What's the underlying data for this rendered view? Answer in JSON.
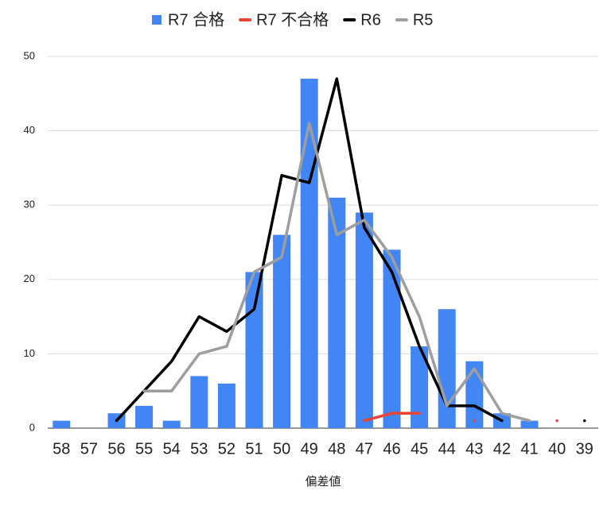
{
  "chart_data": {
    "type": "bar-line",
    "x_label": "偏差値",
    "categories": [
      "58",
      "57",
      "56",
      "55",
      "54",
      "53",
      "52",
      "51",
      "50",
      "49",
      "48",
      "47",
      "46",
      "45",
      "44",
      "43",
      "42",
      "41",
      "40",
      "39"
    ],
    "series": [
      {
        "name": "R7 合格",
        "type": "bar",
        "color": "#4285f4",
        "values": [
          1,
          null,
          2,
          3,
          1,
          7,
          6,
          21,
          26,
          47,
          31,
          29,
          24,
          11,
          16,
          9,
          2,
          1,
          null,
          null
        ]
      },
      {
        "name": "R7 不合格",
        "type": "line",
        "color": "#ea4335",
        "values": [
          null,
          null,
          null,
          null,
          null,
          null,
          null,
          null,
          null,
          null,
          null,
          1,
          2,
          2,
          null,
          1,
          null,
          null,
          1,
          null
        ]
      },
      {
        "name": "R6",
        "type": "line",
        "color": "#000000",
        "values": [
          null,
          null,
          1,
          5,
          9,
          15,
          13,
          16,
          34,
          33,
          47,
          27,
          21,
          11,
          3,
          3,
          1,
          null,
          null,
          1
        ]
      },
      {
        "name": "R5",
        "type": "line",
        "color": "#9e9e9e",
        "values": [
          null,
          null,
          null,
          5,
          5,
          10,
          11,
          21,
          23,
          41,
          26,
          28,
          23,
          15,
          3,
          8,
          2,
          1,
          null,
          null
        ]
      }
    ],
    "ylim": [
      0,
      50
    ],
    "yticks": [
      0,
      10,
      20,
      30,
      40,
      50
    ],
    "grid": true,
    "legend": "top"
  }
}
